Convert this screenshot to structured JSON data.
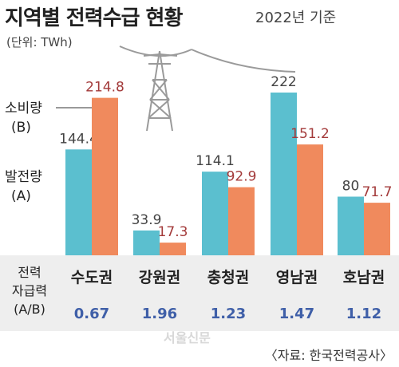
{
  "title": "지역별 전력수급 현황",
  "basis": "2022년 기준",
  "unit": "(단위: TWh)",
  "legend": {
    "consumption_line1": "소비량",
    "consumption_line2": "(B)",
    "generation_line1": "발전량",
    "generation_line2": "(A)"
  },
  "ratio_label": {
    "line1": "전력",
    "line2": "자급력",
    "line3": "(A/B)"
  },
  "source": "〈자료: 한국전력공사〉",
  "watermark": "서울신문",
  "colors": {
    "generation": "#5bbfcf",
    "consumption": "#f08a5d",
    "generation_label": "#444444",
    "consumption_label": "#a33a3a"
  },
  "chart_data": {
    "type": "bar",
    "title": "지역별 전력수급 현황",
    "categories": [
      "수도권",
      "강원권",
      "충청권",
      "영남권",
      "호남권"
    ],
    "series": [
      {
        "name": "발전량 (A)",
        "values": [
          144.4,
          33.9,
          114.1,
          222,
          80
        ],
        "labels": [
          "144.4",
          "33.9",
          "114.1",
          "222",
          "80"
        ]
      },
      {
        "name": "소비량 (B)",
        "values": [
          214.8,
          17.3,
          92.9,
          151.2,
          71.7
        ],
        "labels": [
          "214.8",
          "17.3",
          "92.9",
          "151.2",
          "71.7"
        ]
      }
    ],
    "self_sufficiency": [
      "0.67",
      "1.96",
      "1.23",
      "1.47",
      "1.12"
    ],
    "ylim": [
      0,
      222
    ]
  }
}
